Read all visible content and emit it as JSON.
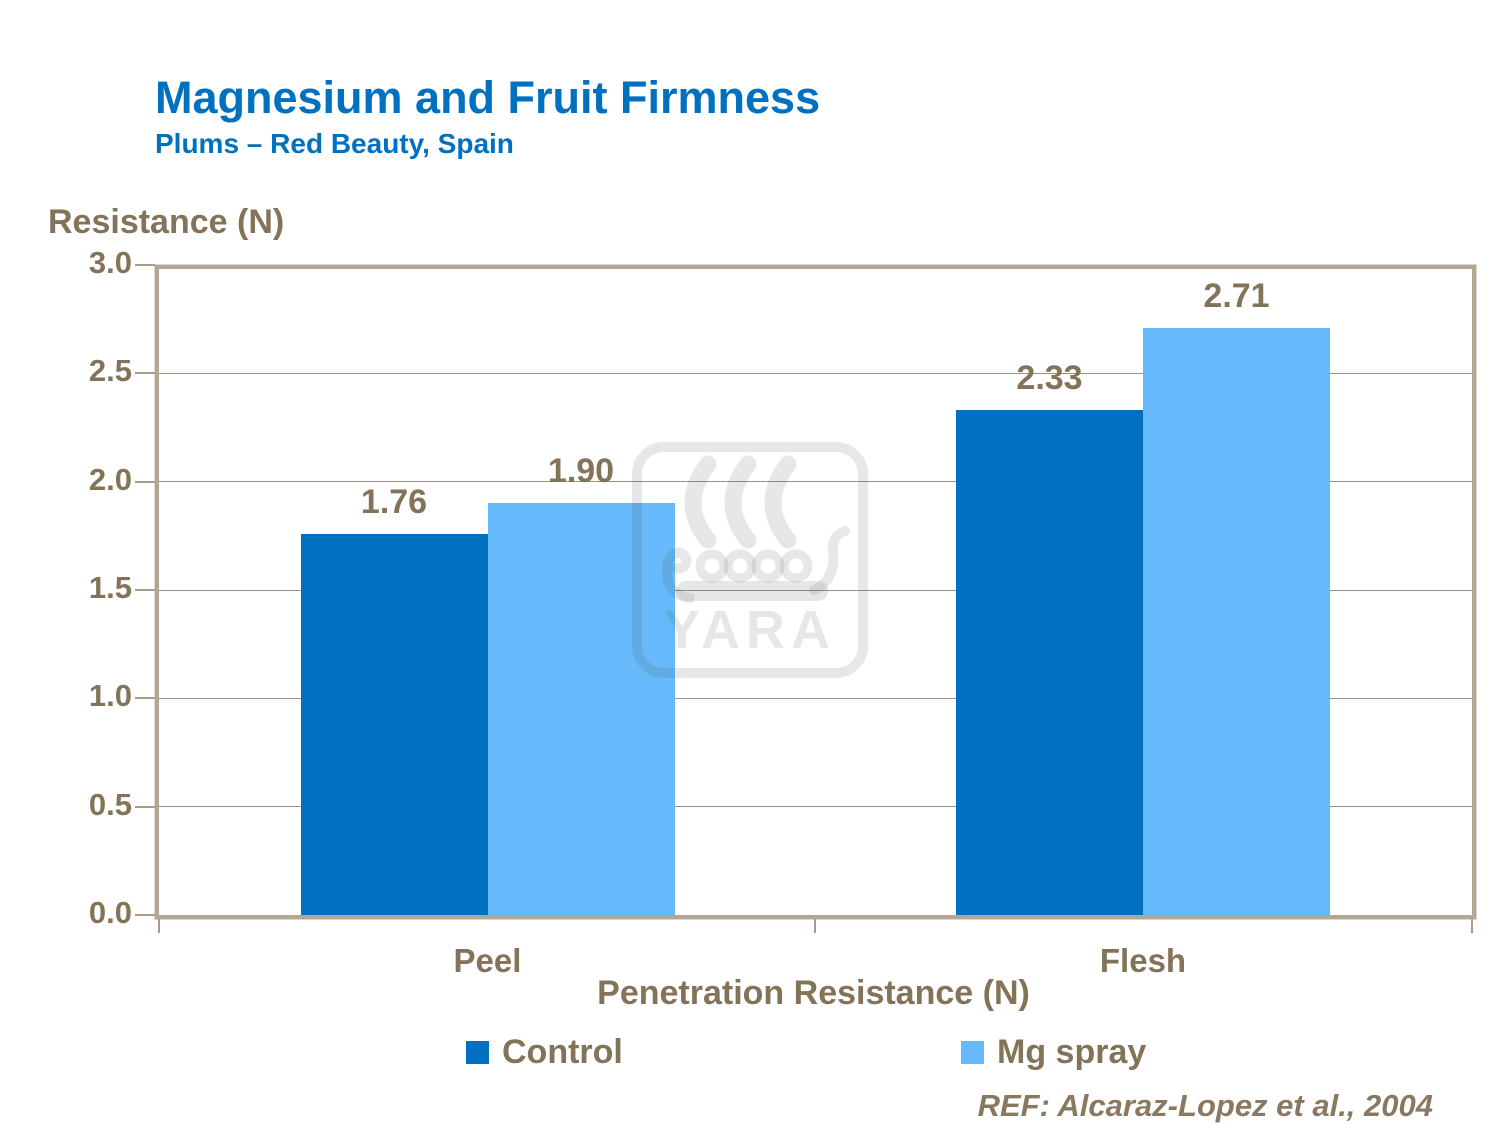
{
  "slide": {
    "title": "Magnesium and Fruit Firmness",
    "subtitle": "Plums – Red Beauty, Spain",
    "reference": "REF: Alcaraz-Lopez et al., 2004",
    "background": "#FFFFFF"
  },
  "colors": {
    "title_blue": "#0070C0",
    "axis_text_brown": "#837358",
    "gridline": "#9C9284",
    "plot_frame": "#B2A794",
    "control_bar": "#0071C1",
    "mg_spray_bar": "#66B9FA",
    "watermark_gray_on_white": "#E8E8E8"
  },
  "watermark": {
    "label": "yara-viking-ship-logo",
    "text": "YARA"
  },
  "chart_data": {
    "type": "bar",
    "title": "",
    "y_axis_title": "Resistance (N)",
    "x_axis_title": "Penetration Resistance (N)",
    "categories": [
      "Peel",
      "Flesh"
    ],
    "series": [
      {
        "name": "Control",
        "color": "#0071C1",
        "values": [
          1.76,
          2.33
        ]
      },
      {
        "name": "Mg spray",
        "color": "#66B9FA",
        "values": [
          1.9,
          2.71
        ]
      }
    ],
    "data_labels": {
      "show": true,
      "format": "0.00",
      "values": [
        [
          "1.76",
          "2.33"
        ],
        [
          "1.90",
          "2.71"
        ]
      ]
    },
    "ylim": [
      0.0,
      3.0
    ],
    "y_tick_step": 0.5,
    "y_tick_labels": [
      "0.0",
      "0.5",
      "1.0",
      "1.5",
      "2.0",
      "2.5",
      "3.0"
    ],
    "grid": "horizontal",
    "legend_position": "bottom"
  }
}
